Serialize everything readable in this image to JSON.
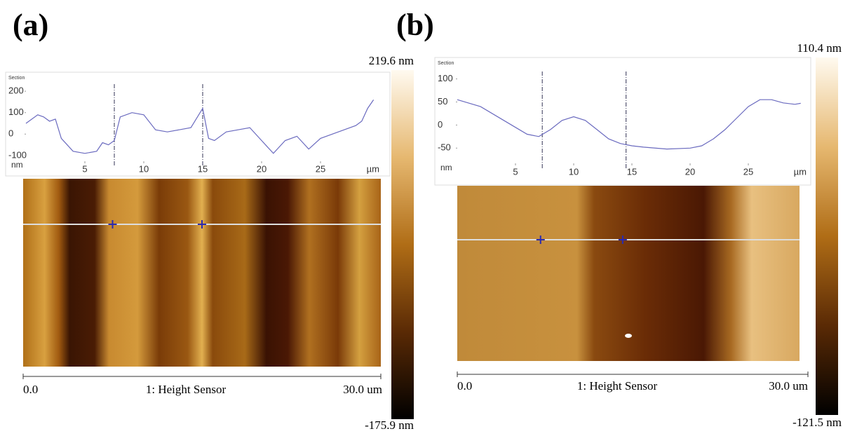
{
  "panels": [
    {
      "label": "(a)",
      "scale_max": "219.6 nm",
      "scale_min": "-175.9 nm",
      "start": "0.0",
      "channel": "1: Height Sensor",
      "end": "30.0 um"
    },
    {
      "label": "(b)",
      "scale_max": "110.4 nm",
      "scale_min": "-121.5 nm",
      "start": "0.0",
      "channel": "1: Height Sensor",
      "end": "30.0 um"
    }
  ],
  "chart_data": [
    {
      "type": "line",
      "title": "Section",
      "x_label": "µm",
      "y_label": "nm",
      "color": "#6a6abf",
      "x": [
        0,
        1,
        1.5,
        2,
        2.5,
        3,
        4,
        5,
        6,
        6.5,
        7,
        7.5,
        8,
        9,
        10,
        11,
        12,
        13,
        14,
        15,
        15.5,
        16,
        17,
        18,
        19,
        20,
        21,
        22,
        23,
        24,
        25,
        26,
        27,
        28,
        28.5,
        29,
        29.5
      ],
      "values": [
        50,
        90,
        80,
        60,
        70,
        -20,
        -80,
        -90,
        -80,
        -40,
        -50,
        -30,
        80,
        100,
        90,
        20,
        10,
        20,
        30,
        120,
        -20,
        -30,
        10,
        20,
        30,
        -30,
        -90,
        -30,
        -10,
        -70,
        -20,
        0,
        20,
        40,
        60,
        120,
        160
      ],
      "xlim": [
        0,
        30
      ],
      "ylim": [
        -120,
        220
      ],
      "xticks": [
        5,
        10,
        15,
        20,
        25
      ],
      "yticks": [
        200,
        100,
        0,
        -100
      ],
      "cursors": [
        7.5,
        15
      ]
    },
    {
      "type": "line",
      "title": "Section",
      "x_label": "µm",
      "y_label": "nm",
      "color": "#6a6abf",
      "x": [
        0,
        2,
        4,
        5,
        6,
        7,
        8,
        9,
        10,
        11,
        12,
        13,
        14,
        15,
        16,
        18,
        20,
        21,
        22,
        23,
        24,
        25,
        26,
        27,
        28,
        29,
        29.5
      ],
      "values": [
        55,
        40,
        10,
        -5,
        -20,
        -25,
        -10,
        10,
        18,
        10,
        -10,
        -30,
        -40,
        -45,
        -48,
        -52,
        -50,
        -45,
        -30,
        -10,
        15,
        40,
        55,
        55,
        48,
        45,
        47
      ],
      "xlim": [
        0,
        30
      ],
      "ylim": [
        -80,
        110
      ],
      "xticks": [
        5,
        10,
        15,
        20,
        25
      ],
      "yticks": [
        100,
        50,
        0,
        -50
      ],
      "cursors": [
        7.3,
        14.5
      ]
    }
  ]
}
